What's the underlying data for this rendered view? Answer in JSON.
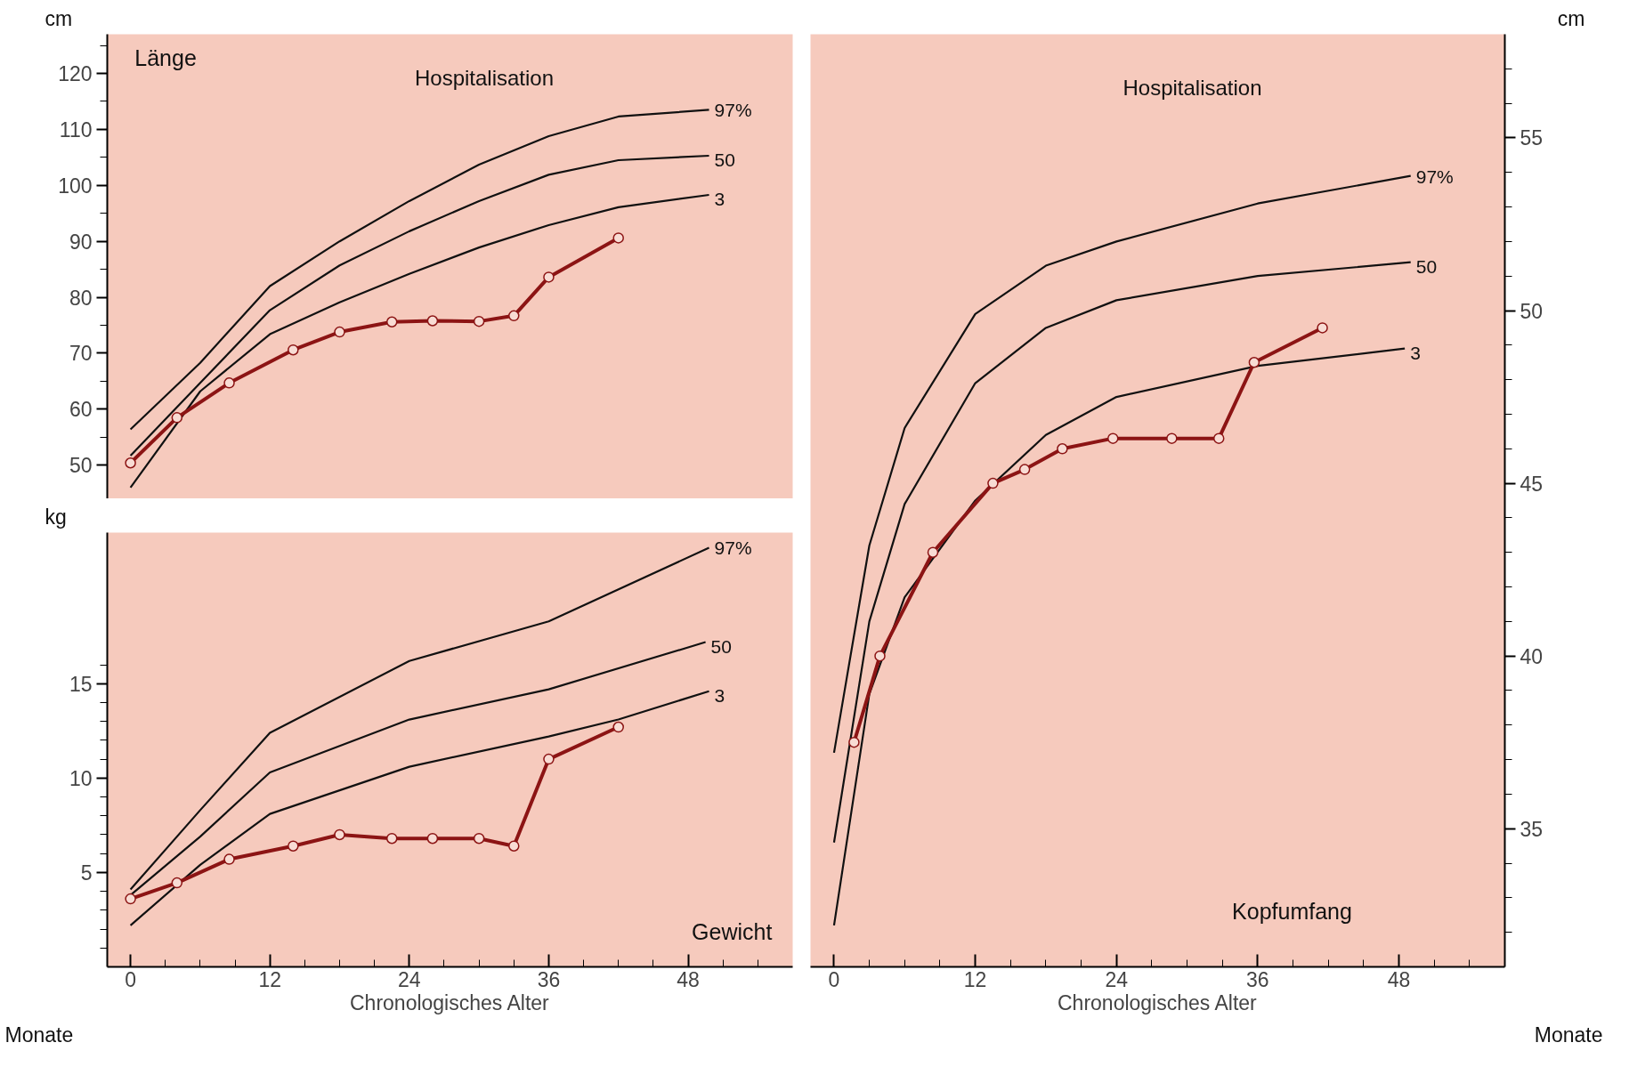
{
  "chart_data": [
    {
      "type": "line",
      "title": "Länge",
      "ylabel": "cm",
      "annotations": [
        "Hospitalisation"
      ],
      "tick_labels": "y",
      "grid": false,
      "xlim": [
        -2,
        57
      ],
      "ylim": [
        44,
        127
      ],
      "yticks": [
        50,
        {
          "value": 55,
          "label": null
        },
        60,
        {
          "value": 65,
          "label": null
        },
        70,
        {
          "value": 75,
          "label": null
        },
        80,
        {
          "value": 85,
          "label": null
        },
        90,
        {
          "value": 95,
          "label": null
        },
        100,
        {
          "value": 105,
          "label": null
        },
        110,
        {
          "value": 115,
          "label": null
        },
        120,
        {
          "value": 125,
          "label": null
        }
      ],
      "series": [
        {
          "name": "97%",
          "color": "#111111",
          "marker": "none",
          "x": [
            0,
            6,
            12,
            18,
            24,
            30,
            36,
            42,
            49.8
          ],
          "values": [
            56.4,
            68.3,
            82.0,
            90.0,
            97.2,
            103.7,
            108.8,
            112.3,
            113.5
          ]
        },
        {
          "name": "50",
          "color": "#111111",
          "marker": "none",
          "x": [
            0,
            6,
            12,
            18,
            24,
            30,
            36,
            42,
            49.8
          ],
          "values": [
            51.7,
            64.7,
            77.7,
            85.7,
            91.8,
            97.2,
            101.9,
            104.5,
            105.3
          ]
        },
        {
          "name": "3",
          "color": "#111111",
          "marker": "none",
          "x": [
            0,
            6,
            12,
            18,
            24,
            30,
            36,
            42,
            49.8
          ],
          "values": [
            46.0,
            63.2,
            73.4,
            79.1,
            84.2,
            88.9,
            92.9,
            96.1,
            98.3
          ]
        },
        {
          "color": "#8c1414",
          "marker": "circle",
          "x": [
            0,
            4,
            8.5,
            14,
            18,
            22.5,
            26,
            30,
            33,
            36,
            42
          ],
          "values": [
            50.4,
            58.5,
            64.7,
            70.6,
            73.8,
            75.6,
            75.8,
            75.7,
            76.7,
            83.6,
            90.6
          ]
        }
      ]
    },
    {
      "type": "line",
      "title": "Gewicht",
      "ylabel": "kg",
      "xlabel": "Chronologisches Alter",
      "annotations": [
        "Monate"
      ],
      "grid": false,
      "xlim": [
        -2,
        57
      ],
      "ylim": [
        0,
        23
      ],
      "xticks": [
        {
          "value": 0,
          "label": "0"
        },
        {
          "value": 3,
          "label": null
        },
        {
          "value": 6,
          "label": null
        },
        {
          "value": 9,
          "label": null
        },
        {
          "value": 12,
          "label": "12"
        },
        {
          "value": 15,
          "label": null
        },
        {
          "value": 18,
          "label": null
        },
        {
          "value": 21,
          "label": null
        },
        {
          "value": 24,
          "label": "24"
        },
        {
          "value": 27,
          "label": null
        },
        {
          "value": 30,
          "label": null
        },
        {
          "value": 33,
          "label": null
        },
        {
          "value": 36,
          "label": "36"
        },
        {
          "value": 39,
          "label": null
        },
        {
          "value": 42,
          "label": null
        },
        {
          "value": 45,
          "label": null
        },
        {
          "value": 48,
          "label": "48"
        },
        {
          "value": 51,
          "label": null
        },
        {
          "value": 54,
          "label": null
        }
      ],
      "yticks": [
        {
          "value": 1,
          "label": null
        },
        {
          "value": 2,
          "label": null
        },
        {
          "value": 3,
          "label": null
        },
        {
          "value": 4,
          "label": null
        },
        5,
        {
          "value": 6,
          "label": null
        },
        {
          "value": 7,
          "label": null
        },
        {
          "value": 8,
          "label": null
        },
        {
          "value": 9,
          "label": null
        },
        10,
        {
          "value": 11,
          "label": null
        },
        {
          "value": 12,
          "label": null
        },
        {
          "value": 13,
          "label": null
        },
        {
          "value": 14,
          "label": null
        },
        15,
        {
          "value": 16,
          "label": null
        }
      ],
      "series": [
        {
          "name": "97%",
          "color": "#111111",
          "marker": "none",
          "x": [
            0,
            6,
            12,
            24,
            36,
            49.8
          ],
          "values": [
            4.1,
            8.3,
            12.4,
            16.2,
            18.3,
            22.2
          ]
        },
        {
          "name": "50",
          "color": "#111111",
          "marker": "none",
          "x": [
            0,
            6,
            12,
            24,
            36,
            49.5
          ],
          "values": [
            3.8,
            6.9,
            10.3,
            13.1,
            14.7,
            17.2
          ]
        },
        {
          "name": "3",
          "color": "#111111",
          "marker": "none",
          "x": [
            0,
            6,
            12,
            24,
            36,
            42,
            49.8
          ],
          "values": [
            2.2,
            5.4,
            8.1,
            10.6,
            12.2,
            13.1,
            14.6
          ]
        },
        {
          "color": "#8c1414",
          "marker": "circle",
          "x": [
            0,
            4,
            8.5,
            14,
            18,
            22.5,
            26,
            30,
            33,
            36,
            42
          ],
          "values": [
            3.6,
            4.45,
            5.7,
            6.4,
            7.0,
            6.8,
            6.8,
            6.8,
            6.4,
            11.0,
            12.7
          ]
        }
      ]
    },
    {
      "type": "line",
      "title": "Kopfumfang",
      "ylabel": "cm",
      "xlabel": "Chronologisches Alter",
      "annotations": [
        "Hospitalisation",
        "Monate"
      ],
      "grid": false,
      "xlim": [
        -2,
        57
      ],
      "ylim": [
        31,
        58
      ],
      "xticks": [
        {
          "value": 0,
          "label": "0"
        },
        {
          "value": 3,
          "label": null
        },
        {
          "value": 6,
          "label": null
        },
        {
          "value": 9,
          "label": null
        },
        {
          "value": 12,
          "label": "12"
        },
        {
          "value": 15,
          "label": null
        },
        {
          "value": 18,
          "label": null
        },
        {
          "value": 21,
          "label": null
        },
        {
          "value": 24,
          "label": "24"
        },
        {
          "value": 27,
          "label": null
        },
        {
          "value": 30,
          "label": null
        },
        {
          "value": 33,
          "label": null
        },
        {
          "value": 36,
          "label": "36"
        },
        {
          "value": 39,
          "label": null
        },
        {
          "value": 42,
          "label": null
        },
        {
          "value": 45,
          "label": null
        },
        {
          "value": 48,
          "label": "48"
        },
        {
          "value": 51,
          "label": null
        },
        {
          "value": 54,
          "label": null
        }
      ],
      "yticks": [
        {
          "value": 32,
          "label": null
        },
        {
          "value": 33,
          "label": null
        },
        {
          "value": 34,
          "label": null
        },
        35,
        {
          "value": 36,
          "label": null
        },
        {
          "value": 37,
          "label": null
        },
        {
          "value": 38,
          "label": null
        },
        {
          "value": 39,
          "label": null
        },
        40,
        {
          "value": 41,
          "label": null
        },
        {
          "value": 42,
          "label": null
        },
        {
          "value": 43,
          "label": null
        },
        {
          "value": 44,
          "label": null
        },
        45,
        {
          "value": 46,
          "label": null
        },
        {
          "value": 47,
          "label": null
        },
        {
          "value": 48,
          "label": null
        },
        {
          "value": 49,
          "label": null
        },
        50,
        {
          "value": 51,
          "label": null
        },
        {
          "value": 52,
          "label": null
        },
        {
          "value": 53,
          "label": null
        },
        {
          "value": 54,
          "label": null
        },
        55,
        {
          "value": 56,
          "label": null
        },
        {
          "value": 57,
          "label": null
        }
      ],
      "series": [
        {
          "name": "97%",
          "color": "#111111",
          "marker": "none",
          "x": [
            0,
            3,
            6,
            12,
            18,
            24,
            36,
            49
          ],
          "values": [
            37.2,
            43.2,
            46.6,
            49.9,
            51.3,
            52.0,
            53.1,
            53.9
          ]
        },
        {
          "name": "50",
          "color": "#111111",
          "marker": "none",
          "x": [
            0,
            3,
            6,
            12,
            18,
            24,
            36,
            49
          ],
          "values": [
            34.6,
            41.0,
            44.4,
            47.9,
            49.5,
            50.3,
            51.0,
            51.4
          ]
        },
        {
          "name": "3",
          "color": "#111111",
          "marker": "none",
          "x": [
            0,
            3,
            6,
            12,
            18,
            24,
            36,
            48.5
          ],
          "values": [
            32.2,
            38.9,
            41.7,
            44.5,
            46.4,
            47.5,
            48.4,
            48.9
          ]
        },
        {
          "color": "#8c1414",
          "marker": "circle",
          "x": [
            1.7,
            3.9,
            8.4,
            13.5,
            16.2,
            19.4,
            23.7,
            28.7,
            32.7,
            35.7,
            41.5
          ],
          "values": [
            37.5,
            40.0,
            43.0,
            45.0,
            45.4,
            46.0,
            46.3,
            46.3,
            46.3,
            48.5,
            49.5
          ]
        }
      ]
    }
  ]
}
